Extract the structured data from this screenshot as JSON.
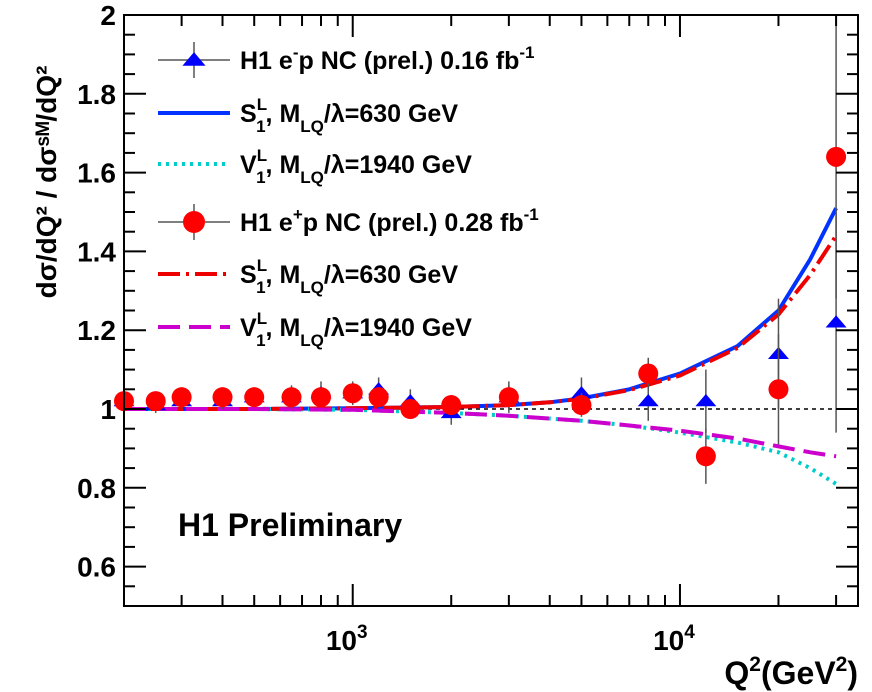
{
  "chart_data": {
    "type": "scatter",
    "x_scale": "log",
    "xlim": [
      200,
      35000
    ],
    "ylim": [
      0.5,
      2.0
    ],
    "y_ticks": [
      {
        "v": 0.6,
        "label": "0.6"
      },
      {
        "v": 0.8,
        "label": "0.8"
      },
      {
        "v": 1.0,
        "label": "1"
      },
      {
        "v": 1.2,
        "label": "1.2"
      },
      {
        "v": 1.4,
        "label": "1.4"
      },
      {
        "v": 1.6,
        "label": "1.6"
      },
      {
        "v": 1.8,
        "label": "1.8"
      },
      {
        "v": 2.0,
        "label": "2"
      }
    ],
    "x_ticks": [
      {
        "v": 1000,
        "base": "10",
        "exp": "3"
      },
      {
        "v": 10000,
        "base": "10",
        "exp": "4"
      }
    ],
    "reference_line": 1.0,
    "xlabel": {
      "main": "Q",
      "sup": "2",
      "paren": "(GeV",
      "sup2": "2",
      "close": ")"
    },
    "ylabel": "dσ/dQ² / dσˢᴹ/dQ²",
    "annotation": "H1 Preliminary",
    "colors": {
      "em_data": "#0000ff",
      "ep_data": "#ff0000",
      "s1_em": "#0033ff",
      "v1_em": "#00cccc",
      "s1_ep": "#ee0000",
      "v1_ep": "#cc00cc"
    },
    "series": [
      {
        "name": "H1 e⁻p NC (prel.) 0.16 fb⁻¹",
        "kind": "points",
        "marker": "triangle",
        "color": "#0000ff",
        "points": [
          {
            "x": 200,
            "y": 1.02,
            "err": 0.02
          },
          {
            "x": 250,
            "y": 1.01,
            "err": 0.02
          },
          {
            "x": 300,
            "y": 1.02,
            "err": 0.02
          },
          {
            "x": 400,
            "y": 1.02,
            "err": 0.02
          },
          {
            "x": 500,
            "y": 1.03,
            "err": 0.02
          },
          {
            "x": 650,
            "y": 1.03,
            "err": 0.03
          },
          {
            "x": 800,
            "y": 1.04,
            "err": 0.03
          },
          {
            "x": 1000,
            "y": 1.04,
            "err": 0.03
          },
          {
            "x": 1200,
            "y": 1.05,
            "err": 0.03
          },
          {
            "x": 1500,
            "y": 1.02,
            "err": 0.03
          },
          {
            "x": 2000,
            "y": 0.99,
            "err": 0.03
          },
          {
            "x": 3000,
            "y": 1.03,
            "err": 0.04
          },
          {
            "x": 5000,
            "y": 1.04,
            "err": 0.04
          },
          {
            "x": 8000,
            "y": 1.02,
            "err": 0.05
          },
          {
            "x": 12000,
            "y": 1.02,
            "err": 0.08
          },
          {
            "x": 20000,
            "y": 1.14,
            "err": 0.14
          },
          {
            "x": 30000,
            "y": 1.22,
            "err": 0.28
          }
        ]
      },
      {
        "name": "S₁ᴸ, M_LQ/λ=630 GeV",
        "legend": {
          "a": "S",
          "sub": "1",
          "sup": "L",
          "b": ",  M",
          "sub2": "LQ",
          "c": "/λ=630 GeV"
        },
        "kind": "line",
        "color": "#0033ff",
        "dash": "",
        "x": [
          200,
          500,
          1000,
          2000,
          3000,
          4000,
          5000,
          7000,
          10000,
          15000,
          20000,
          25000,
          30000
        ],
        "y": [
          1.0,
          1.0,
          1.002,
          1.005,
          1.01,
          1.017,
          1.027,
          1.05,
          1.09,
          1.16,
          1.25,
          1.38,
          1.51
        ]
      },
      {
        "name": "V₁ᴸ, M_LQ/λ=1940 GeV",
        "legend": {
          "a": "V",
          "sub": "1",
          "sup": "L",
          "b": ",  M",
          "sub2": "LQ",
          "c": "/λ=1940 GeV"
        },
        "kind": "line",
        "color": "#00cccc",
        "dash": "3 5",
        "x": [
          200,
          500,
          1000,
          2000,
          3000,
          5000,
          7000,
          10000,
          15000,
          20000,
          25000,
          30000
        ],
        "y": [
          1.0,
          1.0,
          0.998,
          0.99,
          0.983,
          0.97,
          0.958,
          0.94,
          0.915,
          0.89,
          0.85,
          0.81
        ]
      },
      {
        "name": "H1 e⁺p NC (prel.) 0.28 fb⁻¹",
        "kind": "points",
        "marker": "circle",
        "color": "#ff0000",
        "points": [
          {
            "x": 200,
            "y": 1.02,
            "err": 0.02
          },
          {
            "x": 250,
            "y": 1.02,
            "err": 0.02
          },
          {
            "x": 300,
            "y": 1.03,
            "err": 0.02
          },
          {
            "x": 400,
            "y": 1.03,
            "err": 0.02
          },
          {
            "x": 500,
            "y": 1.03,
            "err": 0.02
          },
          {
            "x": 650,
            "y": 1.03,
            "err": 0.02
          },
          {
            "x": 800,
            "y": 1.03,
            "err": 0.02
          },
          {
            "x": 1000,
            "y": 1.04,
            "err": 0.02
          },
          {
            "x": 1200,
            "y": 1.03,
            "err": 0.02
          },
          {
            "x": 1500,
            "y": 1.0,
            "err": 0.02
          },
          {
            "x": 2000,
            "y": 1.01,
            "err": 0.02
          },
          {
            "x": 3000,
            "y": 1.03,
            "err": 0.03
          },
          {
            "x": 5000,
            "y": 1.01,
            "err": 0.03
          },
          {
            "x": 8000,
            "y": 1.09,
            "err": 0.04
          },
          {
            "x": 12000,
            "y": 0.88,
            "err": 0.07
          },
          {
            "x": 20000,
            "y": 1.05,
            "err": 0.14
          },
          {
            "x": 30000,
            "y": 1.64,
            "err": 0.36
          }
        ]
      },
      {
        "name": "S₁ᴸ, M_LQ/λ=630 GeV",
        "legend": {
          "a": "S",
          "sub": "1",
          "sup": "L",
          "b": ",  M",
          "sub2": "LQ",
          "c": "/λ=630 GeV"
        },
        "kind": "line",
        "color": "#ee0000",
        "dash": "22 6 3 6",
        "x": [
          200,
          500,
          1000,
          2000,
          3000,
          4000,
          5000,
          7000,
          10000,
          15000,
          20000,
          25000,
          30000
        ],
        "y": [
          1.0,
          1.0,
          1.002,
          1.005,
          1.01,
          1.017,
          1.026,
          1.048,
          1.085,
          1.155,
          1.24,
          1.34,
          1.44
        ]
      },
      {
        "name": "V₁ᴸ, M_LQ/λ=1940 GeV",
        "legend": {
          "a": "V",
          "sub": "1",
          "sup": "L",
          "b": ",  M",
          "sub2": "LQ",
          "c": "/λ=1940 GeV"
        },
        "kind": "line",
        "color": "#cc00cc",
        "dash": "22 9",
        "x": [
          200,
          500,
          1000,
          2000,
          3000,
          5000,
          7000,
          10000,
          15000,
          20000,
          25000,
          30000
        ],
        "y": [
          1.0,
          1.0,
          0.998,
          0.99,
          0.983,
          0.97,
          0.958,
          0.945,
          0.925,
          0.905,
          0.89,
          0.88
        ]
      }
    ],
    "legend_labels": {
      "em": {
        "a": "H1 e",
        "sup": "-",
        "b": "p NC (prel.) 0.16 fb",
        "sup2": "-1"
      },
      "ep": {
        "a": "H1 e",
        "sup": "+",
        "b": "p NC (prel.) 0.28 fb",
        "sup2": "-1"
      }
    }
  }
}
